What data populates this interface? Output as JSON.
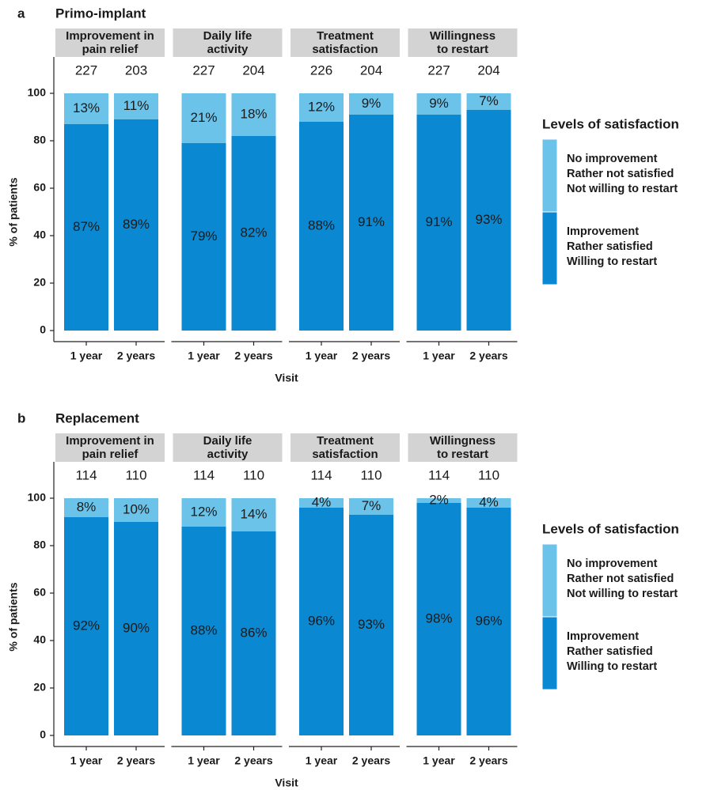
{
  "chart_data": [
    {
      "type": "stacked_bar",
      "panel": "a",
      "title": "Primo-implant",
      "ylabel": "% of patients",
      "xlabel": "Visit",
      "ylim": [
        0,
        100
      ],
      "yticks": [
        0,
        20,
        40,
        60,
        80,
        100
      ],
      "categories": [
        "1 year",
        "2 years"
      ],
      "legend_title": "Levels of satisfaction",
      "legend": [
        {
          "name": [
            "Improvement",
            "Rather satisfied",
            "Willing to restart"
          ],
          "color": "#0a89d2"
        },
        {
          "name": [
            "No improvement",
            "Rather not satisfied",
            "Not willing to restart"
          ],
          "color": "#6cc3ea"
        }
      ],
      "facets": [
        {
          "title": [
            "Improvement in",
            "pain relief"
          ],
          "n": [
            227,
            203
          ],
          "series": [
            {
              "values": [
                87,
                89
              ],
              "value_labels": [
                "87%",
                "89%"
              ]
            },
            {
              "values": [
                13,
                11
              ],
              "value_labels": [
                "13%",
                "11%"
              ]
            }
          ]
        },
        {
          "title": [
            "Daily life",
            "activity"
          ],
          "n": [
            227,
            204
          ],
          "series": [
            {
              "values": [
                79,
                82
              ],
              "value_labels": [
                "79%",
                "82%"
              ]
            },
            {
              "values": [
                21,
                18
              ],
              "value_labels": [
                "21%",
                "18%"
              ]
            }
          ]
        },
        {
          "title": [
            "Treatment",
            "satisfaction"
          ],
          "n": [
            226,
            204
          ],
          "series": [
            {
              "values": [
                88,
                91
              ],
              "value_labels": [
                "88%",
                "91%"
              ]
            },
            {
              "values": [
                12,
                9
              ],
              "value_labels": [
                "12%",
                "9%"
              ]
            }
          ]
        },
        {
          "title": [
            "Willingness",
            "to restart"
          ],
          "n": [
            227,
            204
          ],
          "series": [
            {
              "values": [
                91,
                93
              ],
              "value_labels": [
                "91%",
                "93%"
              ]
            },
            {
              "values": [
                9,
                7
              ],
              "value_labels": [
                "9%",
                "7%"
              ]
            }
          ]
        }
      ]
    },
    {
      "type": "stacked_bar",
      "panel": "b",
      "title": "Replacement",
      "ylabel": "% of patients",
      "xlabel": "Visit",
      "ylim": [
        0,
        100
      ],
      "yticks": [
        0,
        20,
        40,
        60,
        80,
        100
      ],
      "categories": [
        "1 year",
        "2 years"
      ],
      "legend_title": "Levels of satisfaction",
      "legend": [
        {
          "name": [
            "Improvement",
            "Rather satisfied",
            "Willing to restart"
          ],
          "color": "#0a89d2"
        },
        {
          "name": [
            "No improvement",
            "Rather not satisfied",
            "Not willing to restart"
          ],
          "color": "#6cc3ea"
        }
      ],
      "facets": [
        {
          "title": [
            "Improvement in",
            "pain relief"
          ],
          "n": [
            114,
            110
          ],
          "series": [
            {
              "values": [
                92,
                90
              ],
              "value_labels": [
                "92%",
                "90%"
              ]
            },
            {
              "values": [
                8,
                10
              ],
              "value_labels": [
                "8%",
                "10%"
              ]
            }
          ]
        },
        {
          "title": [
            "Daily life",
            "activity"
          ],
          "n": [
            114,
            110
          ],
          "series": [
            {
              "values": [
                88,
                86
              ],
              "value_labels": [
                "88%",
                "86%"
              ]
            },
            {
              "values": [
                12,
                14
              ],
              "value_labels": [
                "12%",
                "14%"
              ]
            }
          ]
        },
        {
          "title": [
            "Treatment",
            "satisfaction"
          ],
          "n": [
            114,
            110
          ],
          "series": [
            {
              "values": [
                96,
                93
              ],
              "value_labels": [
                "96%",
                "93%"
              ]
            },
            {
              "values": [
                4,
                7
              ],
              "value_labels": [
                "4%",
                "7%"
              ]
            }
          ]
        },
        {
          "title": [
            "Willingness",
            "to restart"
          ],
          "n": [
            114,
            110
          ],
          "series": [
            {
              "values": [
                98,
                96
              ],
              "value_labels": [
                "98%",
                "96%"
              ]
            },
            {
              "values": [
                2,
                4
              ],
              "value_labels": [
                "2%",
                "4%"
              ]
            }
          ]
        }
      ]
    }
  ]
}
